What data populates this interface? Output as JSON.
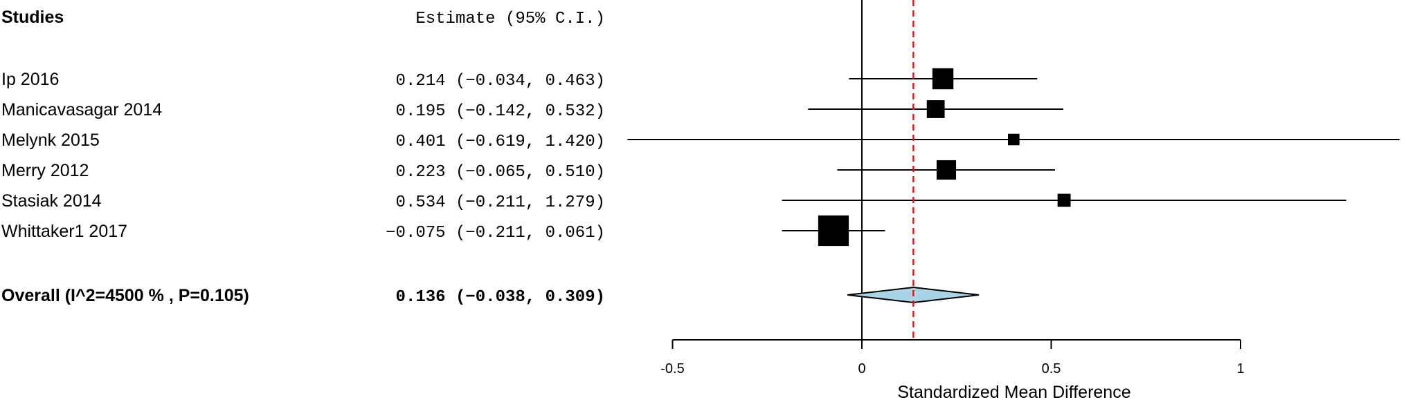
{
  "chart_data": {
    "type": "forest",
    "header": {
      "studies": "Studies",
      "estimate": "Estimate (95% C.I.)"
    },
    "studies": [
      {
        "name": "Ip 2016",
        "estimate": 0.214,
        "lower": -0.034,
        "upper": 0.463,
        "weight": 4,
        "ci_text": "0.214 (−0.034, 0.463)"
      },
      {
        "name": "Manicavasagar 2014",
        "estimate": 0.195,
        "lower": -0.142,
        "upper": 0.532,
        "weight": 3,
        "ci_text": "0.195 (−0.142, 0.532)"
      },
      {
        "name": "Melynk 2015",
        "estimate": 0.401,
        "lower": -0.619,
        "upper": 1.42,
        "weight": 1,
        "ci_text": "0.401 (−0.619, 1.420)"
      },
      {
        "name": "Merry 2012",
        "estimate": 0.223,
        "lower": -0.065,
        "upper": 0.51,
        "weight": 3.5,
        "ci_text": "0.223 (−0.065, 0.510)"
      },
      {
        "name": "Stasiak 2014",
        "estimate": 0.534,
        "lower": -0.211,
        "upper": 1.279,
        "weight": 1.5,
        "ci_text": "0.534 (−0.211, 1.279)"
      },
      {
        "name": "Whittaker1 2017",
        "estimate": -0.075,
        "lower": -0.211,
        "upper": 0.061,
        "weight": 7,
        "ci_text": "−0.075 (−0.211, 0.061)"
      }
    ],
    "overall": {
      "label": "Overall (I^2=4500 % , P=0.105)",
      "estimate": 0.136,
      "lower": -0.038,
      "upper": 0.309,
      "ci_text": "0.136 (−0.038, 0.309)"
    },
    "xaxis": {
      "label": "Standardized Mean Difference",
      "ticks": [
        -0.5,
        0,
        0.5,
        1
      ],
      "tick_labels": [
        "-0.5",
        "0",
        "0.5",
        "1"
      ],
      "xlim": [
        -0.616,
        1.427
      ]
    },
    "reference_line": 0,
    "summary_line": 0.136,
    "colors": {
      "summary_line": "#d62020",
      "diamond_fill": "#a8d4e6",
      "marks": "#000000"
    }
  }
}
